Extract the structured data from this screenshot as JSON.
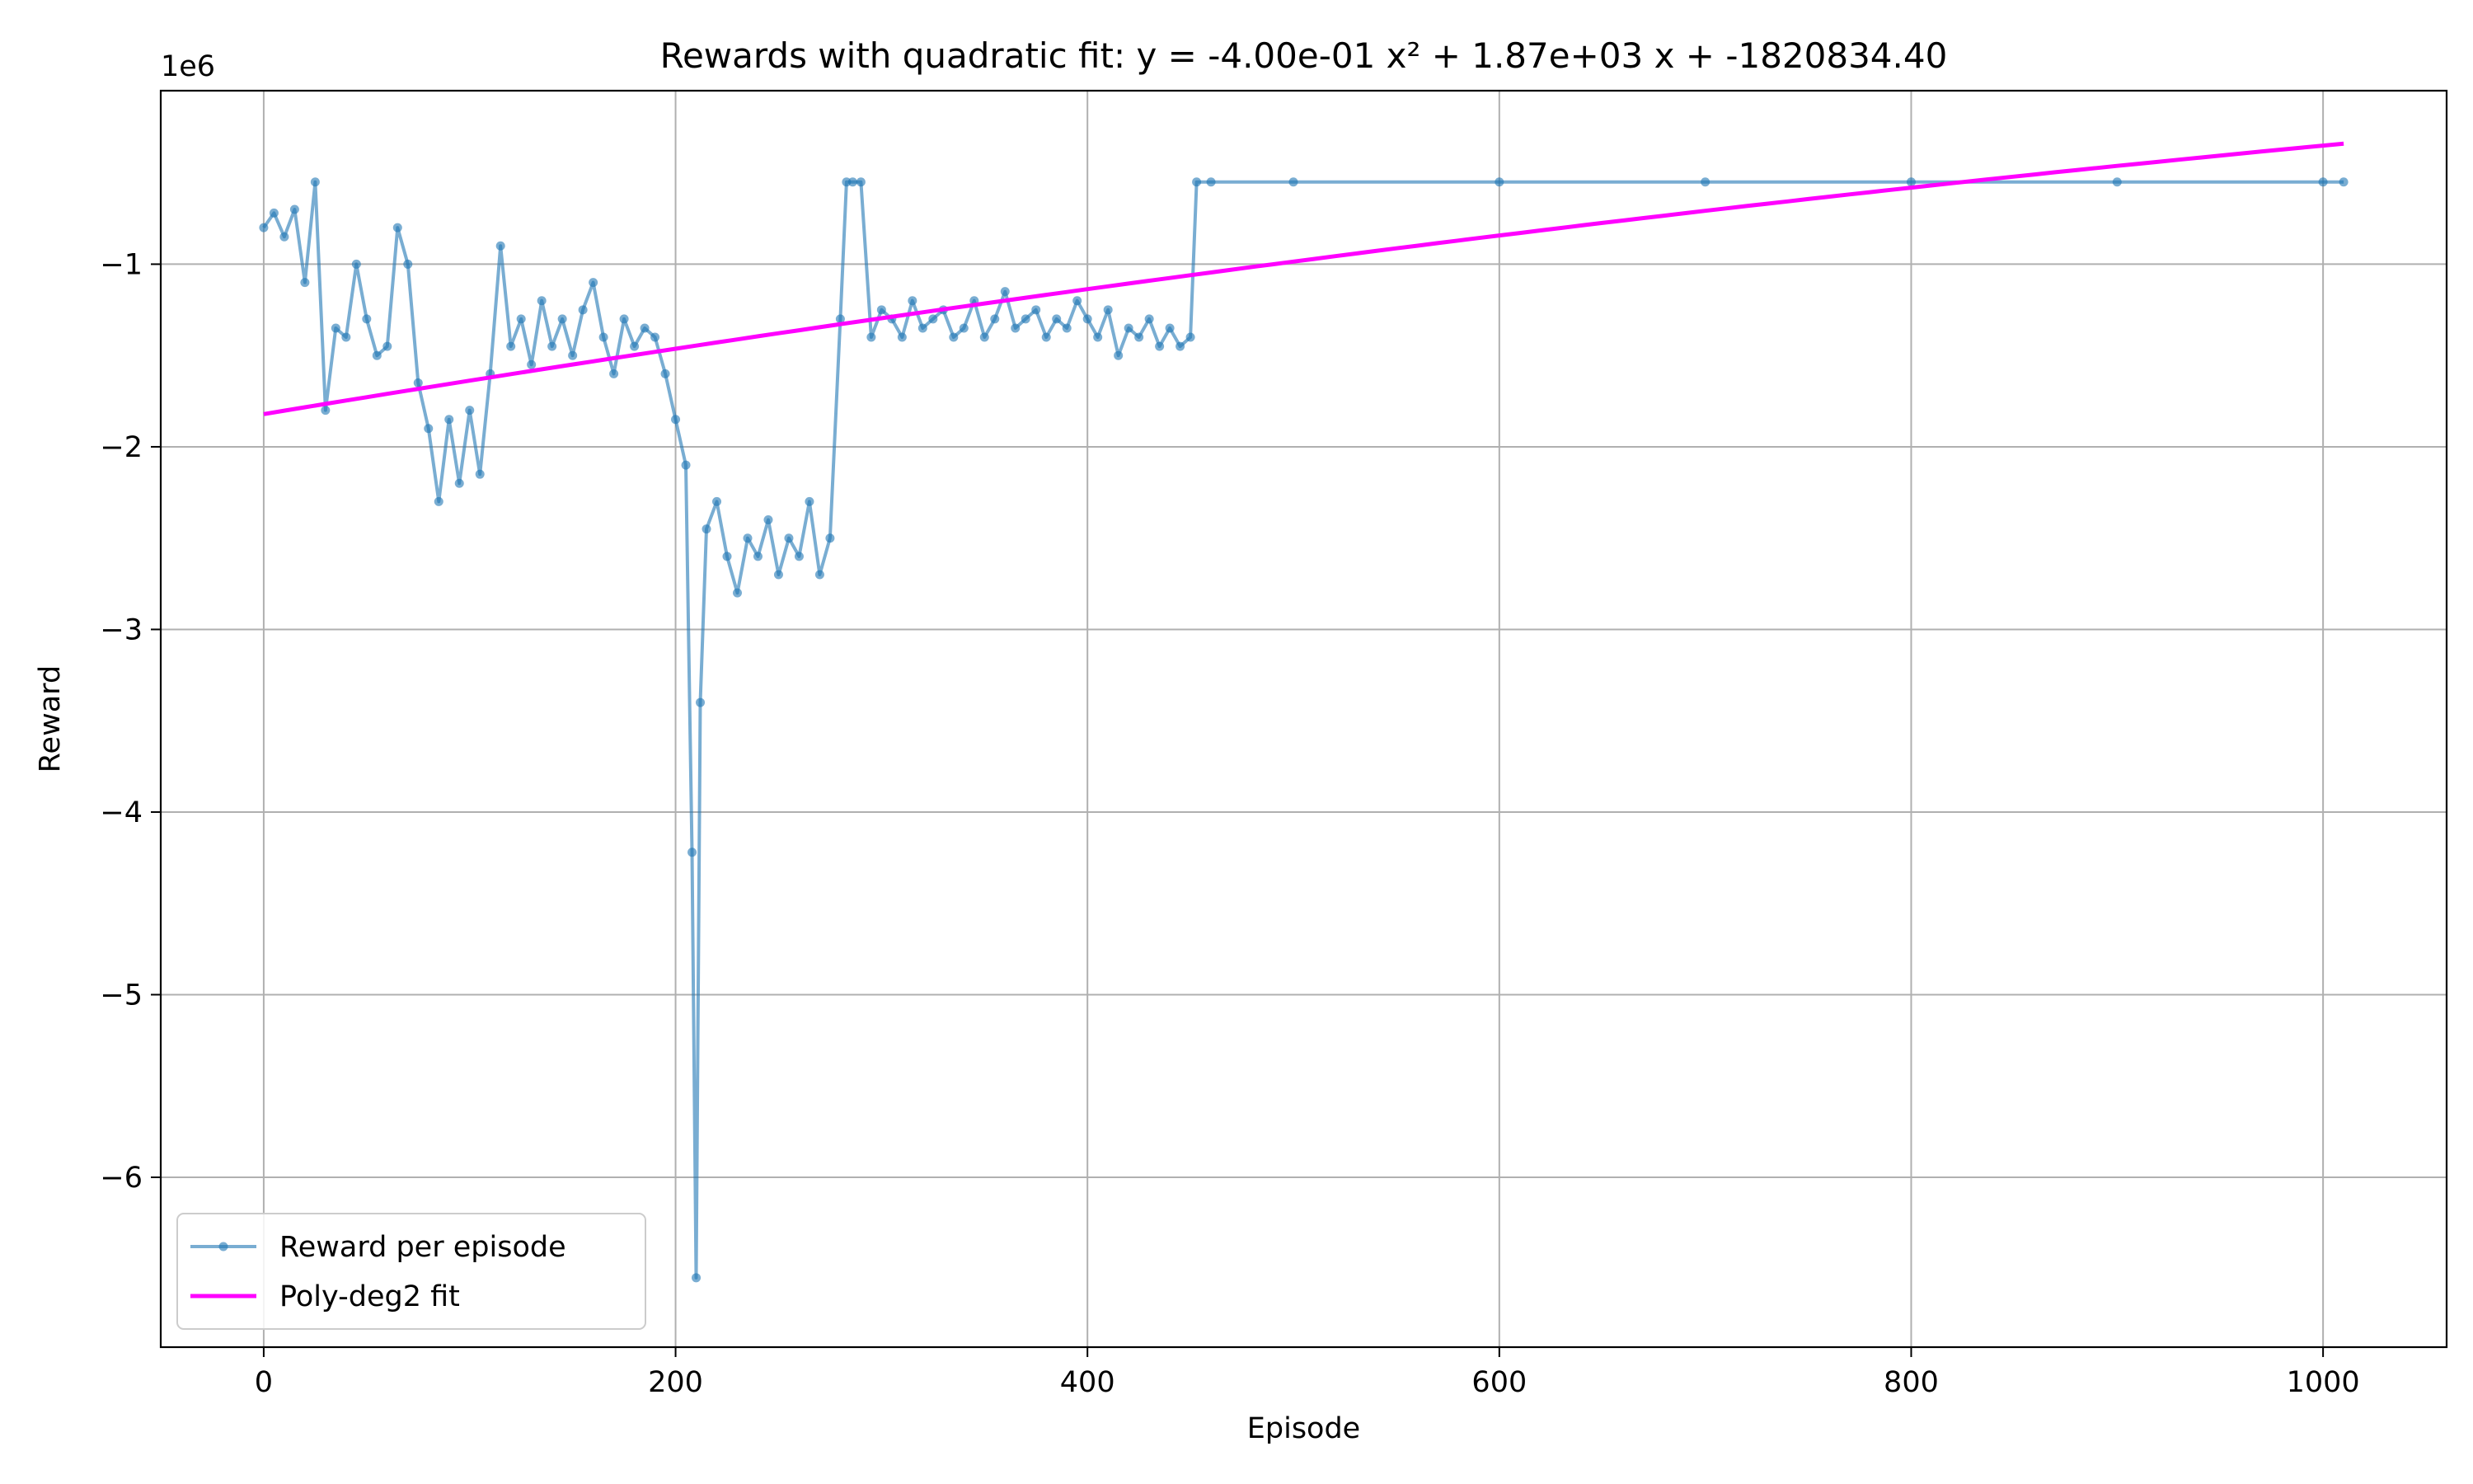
{
  "chart_data": {
    "type": "line",
    "title": "Rewards with quadratic fit: y = -4.00e-01 x² + 1.87e+03 x + -1820834.40",
    "xlabel": "Episode",
    "ylabel": "Reward",
    "y_offset_label": "1e6",
    "xlim": [
      -50,
      1060
    ],
    "ylim": [
      -6.93,
      -0.05
    ],
    "x_ticks": [
      0,
      200,
      400,
      600,
      800,
      1000
    ],
    "x_tick_labels": [
      "0",
      "200",
      "400",
      "600",
      "800",
      "1000"
    ],
    "y_ticks": [
      -6,
      -5,
      -4,
      -3,
      -2,
      -1
    ],
    "y_tick_labels": [
      "−6",
      "−5",
      "−4",
      "−3",
      "−2",
      "−1"
    ],
    "grid": true,
    "legend_position": "lower-left",
    "legend": [
      "Reward per episode",
      "Poly-deg2 fit"
    ],
    "series": [
      {
        "name": "Reward per episode",
        "color": "#1f77b4",
        "style": "line-with-markers",
        "alpha": 0.6,
        "x": [
          0,
          5,
          10,
          15,
          20,
          25,
          30,
          35,
          40,
          45,
          50,
          55,
          60,
          65,
          70,
          75,
          80,
          85,
          90,
          95,
          100,
          105,
          110,
          115,
          120,
          125,
          130,
          135,
          140,
          145,
          150,
          155,
          160,
          165,
          170,
          175,
          180,
          185,
          190,
          195,
          200,
          205,
          208,
          210,
          212,
          215,
          220,
          225,
          230,
          235,
          240,
          245,
          250,
          255,
          260,
          265,
          270,
          275,
          280,
          283,
          286,
          290,
          295,
          300,
          305,
          310,
          315,
          320,
          325,
          330,
          335,
          340,
          345,
          350,
          355,
          360,
          365,
          370,
          375,
          380,
          385,
          390,
          395,
          400,
          405,
          410,
          415,
          420,
          425,
          430,
          435,
          440,
          445,
          450,
          453,
          460,
          500,
          600,
          700,
          800,
          900,
          1000,
          1010
        ],
        "y": [
          -0.8,
          -0.72,
          -0.85,
          -0.7,
          -1.1,
          -0.55,
          -1.8,
          -1.35,
          -1.4,
          -1.0,
          -1.3,
          -1.5,
          -1.45,
          -0.8,
          -1.0,
          -1.65,
          -1.9,
          -2.3,
          -1.85,
          -2.2,
          -1.8,
          -2.15,
          -1.6,
          -0.9,
          -1.45,
          -1.3,
          -1.55,
          -1.2,
          -1.45,
          -1.3,
          -1.5,
          -1.25,
          -1.1,
          -1.4,
          -1.6,
          -1.3,
          -1.45,
          -1.35,
          -1.4,
          -1.6,
          -1.85,
          -2.1,
          -4.22,
          -6.55,
          -3.4,
          -2.45,
          -2.3,
          -2.6,
          -2.8,
          -2.5,
          -2.6,
          -2.4,
          -2.7,
          -2.5,
          -2.6,
          -2.3,
          -2.7,
          -2.5,
          -1.3,
          -0.55,
          -0.55,
          -0.55,
          -1.4,
          -1.25,
          -1.3,
          -1.4,
          -1.2,
          -1.35,
          -1.3,
          -1.25,
          -1.4,
          -1.35,
          -1.2,
          -1.4,
          -1.3,
          -1.15,
          -1.35,
          -1.3,
          -1.25,
          -1.4,
          -1.3,
          -1.35,
          -1.2,
          -1.3,
          -1.4,
          -1.25,
          -1.5,
          -1.35,
          -1.4,
          -1.3,
          -1.45,
          -1.35,
          -1.45,
          -1.4,
          -0.55,
          -0.55,
          -0.55,
          -0.55,
          -0.55,
          -0.55,
          -0.55,
          -0.55,
          -0.55
        ]
      },
      {
        "name": "Poly-deg2 fit",
        "color": "#ff00ff",
        "style": "line",
        "coefficients": [
          -0.4,
          1870,
          -1820834.4
        ],
        "x_range": [
          0,
          1010
        ]
      }
    ]
  }
}
